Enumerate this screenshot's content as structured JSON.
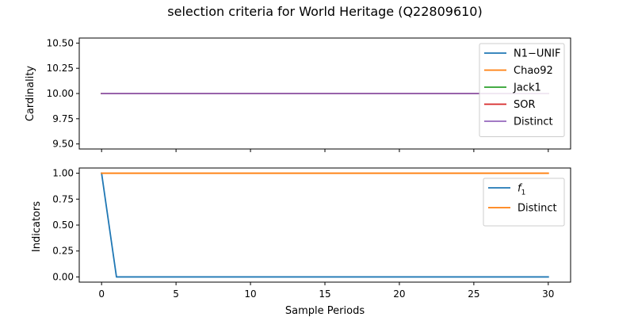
{
  "chart_data": {
    "title": "selection criteria for World Heritage (Q22809610)",
    "type": "line",
    "subplots": [
      {
        "ylabel": "Cardinality",
        "xlim": [
          -1.5,
          31.5
        ],
        "ylim": [
          9.45,
          10.55
        ],
        "yticks": [
          9.5,
          9.75,
          10.0,
          10.25,
          10.5
        ],
        "ytick_labels": [
          "9.50",
          "9.75",
          "10.00",
          "10.25",
          "10.50"
        ],
        "xticks": [
          0,
          5,
          10,
          15,
          20,
          25,
          30
        ],
        "show_xtick_labels": false,
        "legend_position": "upper right",
        "series": [
          {
            "name": "N1−UNIF",
            "color": "#1f77b4",
            "x": [
              0,
              30
            ],
            "y": [
              10,
              10
            ]
          },
          {
            "name": "Chao92",
            "color": "#ff7f0e",
            "x": [
              0,
              30
            ],
            "y": [
              10,
              10
            ]
          },
          {
            "name": "Jack1",
            "color": "#2ca02c",
            "x": [
              0,
              30
            ],
            "y": [
              10,
              10
            ]
          },
          {
            "name": "SOR",
            "color": "#d62728",
            "x": [
              0,
              30
            ],
            "y": [
              10,
              10
            ]
          },
          {
            "name": "Distinct",
            "color": "#9467bd",
            "x": [
              0,
              30
            ],
            "y": [
              10,
              10
            ]
          }
        ]
      },
      {
        "ylabel": "Indicators",
        "xlabel": "Sample Periods",
        "xlim": [
          -1.5,
          31.5
        ],
        "ylim": [
          -0.05,
          1.05
        ],
        "yticks": [
          0.0,
          0.25,
          0.5,
          0.75,
          1.0
        ],
        "ytick_labels": [
          "0.00",
          "0.25",
          "0.50",
          "0.75",
          "1.00"
        ],
        "xticks": [
          0,
          5,
          10,
          15,
          20,
          25,
          30
        ],
        "xtick_labels": [
          "0",
          "5",
          "10",
          "15",
          "20",
          "25",
          "30"
        ],
        "show_xtick_labels": true,
        "legend_position": "upper right",
        "series": [
          {
            "name": "f1",
            "name_base": "f",
            "name_sub": "1",
            "color": "#1f77b4",
            "x": [
              0,
              1,
              30
            ],
            "y": [
              1.0,
              0.0,
              0.0
            ]
          },
          {
            "name": "Distinct",
            "color": "#ff7f0e",
            "x": [
              0,
              30
            ],
            "y": [
              1.0,
              1.0
            ]
          }
        ]
      }
    ]
  }
}
